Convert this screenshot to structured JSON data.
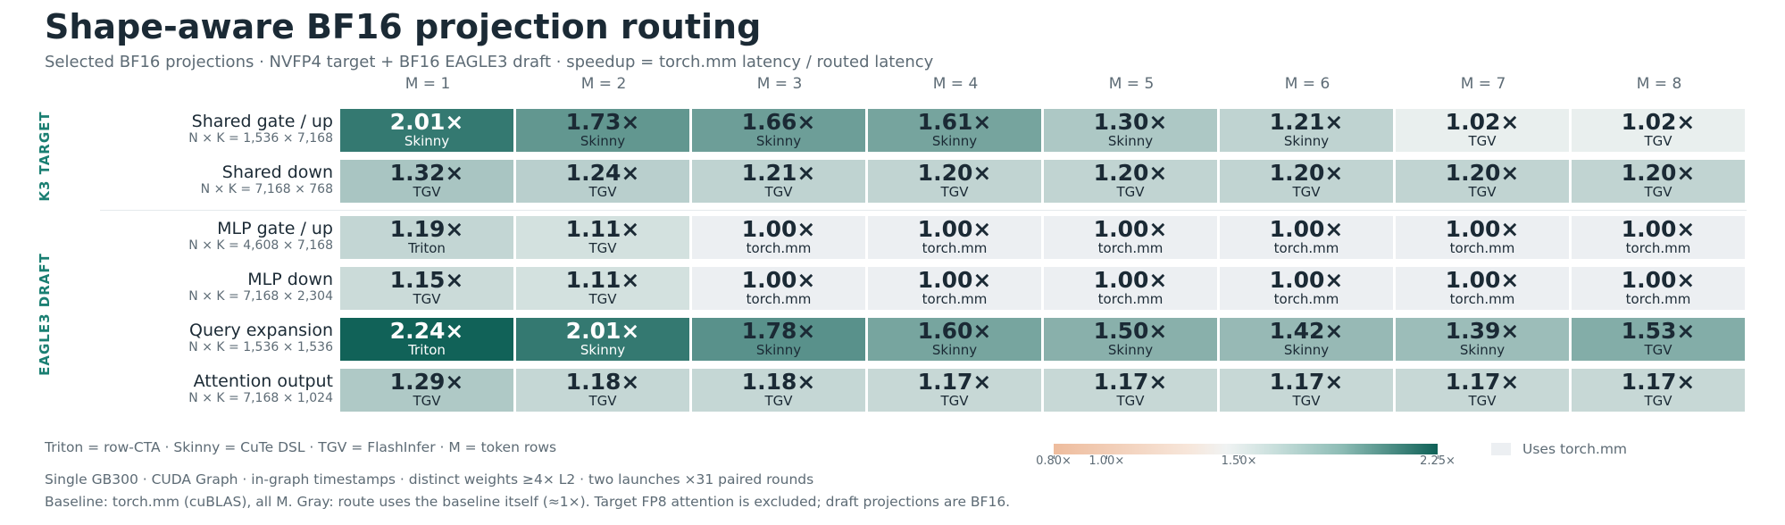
{
  "title": "Shape-aware BF16 projection routing",
  "subtitle": "Selected BF16 projections · NVFP4 target + BF16 EAGLE3 draft · speedup = torch.mm latency / routed latency",
  "chart_data": {
    "type": "heatmap",
    "title": "Shape-aware BF16 projection routing",
    "columns": [
      "M = 1",
      "M = 2",
      "M = 3",
      "M = 4",
      "M = 5",
      "M = 6",
      "M = 7",
      "M = 8"
    ],
    "groups": [
      {
        "label": "K3 TARGET",
        "rows": [
          0,
          1
        ]
      },
      {
        "label": "EAGLE3 DRAFT",
        "rows": [
          2,
          3,
          4,
          5
        ]
      }
    ],
    "rows": [
      {
        "name": "Shared gate / up",
        "dims": "N × K = 1,536 × 7,168",
        "values": [
          2.01,
          1.73,
          1.66,
          1.61,
          1.3,
          1.21,
          1.02,
          1.02
        ],
        "backends": [
          "Skinny",
          "Skinny",
          "Skinny",
          "Skinny",
          "Skinny",
          "Skinny",
          "TGV",
          "TGV"
        ]
      },
      {
        "name": "Shared down",
        "dims": "N × K = 7,168 × 768",
        "values": [
          1.32,
          1.24,
          1.21,
          1.2,
          1.2,
          1.2,
          1.2,
          1.2
        ],
        "backends": [
          "TGV",
          "TGV",
          "TGV",
          "TGV",
          "TGV",
          "TGV",
          "TGV",
          "TGV"
        ]
      },
      {
        "name": "MLP gate / up",
        "dims": "N × K = 4,608 × 7,168",
        "values": [
          1.19,
          1.11,
          1.0,
          1.0,
          1.0,
          1.0,
          1.0,
          1.0
        ],
        "backends": [
          "Triton",
          "TGV",
          "torch.mm",
          "torch.mm",
          "torch.mm",
          "torch.mm",
          "torch.mm",
          "torch.mm"
        ]
      },
      {
        "name": "MLP down",
        "dims": "N × K = 7,168 × 2,304",
        "values": [
          1.15,
          1.11,
          1.0,
          1.0,
          1.0,
          1.0,
          1.0,
          1.0
        ],
        "backends": [
          "TGV",
          "TGV",
          "torch.mm",
          "torch.mm",
          "torch.mm",
          "torch.mm",
          "torch.mm",
          "torch.mm"
        ]
      },
      {
        "name": "Query expansion",
        "dims": "N × K = 1,536 × 1,536",
        "values": [
          2.24,
          2.01,
          1.78,
          1.6,
          1.5,
          1.42,
          1.39,
          1.53
        ],
        "backends": [
          "Triton",
          "Skinny",
          "Skinny",
          "Skinny",
          "Skinny",
          "Skinny",
          "Skinny",
          "TGV"
        ]
      },
      {
        "name": "Attention output",
        "dims": "N × K = 7,168 × 1,024",
        "values": [
          1.29,
          1.18,
          1.18,
          1.17,
          1.17,
          1.17,
          1.17,
          1.17
        ],
        "backends": [
          "TGV",
          "TGV",
          "TGV",
          "TGV",
          "TGV",
          "TGV",
          "TGV",
          "TGV"
        ]
      }
    ],
    "value_suffix": "×",
    "baseline_backend": "torch.mm",
    "baseline_color": "#eceff2",
    "colormap": {
      "low": "#eebc9d",
      "mid": "#f0f3f3",
      "high": "#0f6157"
    },
    "colorbar": {
      "range": [
        0.8,
        2.25
      ],
      "ticks": [
        {
          "value": 0.8,
          "label": "0.80×"
        },
        {
          "value": 1.0,
          "label": "1.00×"
        },
        {
          "value": 1.5,
          "label": "1.50×"
        },
        {
          "value": 2.25,
          "label": "2.25×"
        }
      ]
    }
  },
  "legend": {
    "backends": "Triton = row-CTA · Skinny = CuTe DSL · TGV = FlashInfer · M = token rows",
    "baseline_swatch_label": "Uses torch.mm"
  },
  "notes": [
    "Single GB300 · CUDA Graph · in-graph timestamps · distinct weights ≥4× L2 · two launches ×31 paired rounds",
    "Baseline: torch.mm (cuBLAS), all M. Gray: route uses the baseline itself (≈1×). Target FP8 attention is excluded; draft projections are BF16."
  ]
}
